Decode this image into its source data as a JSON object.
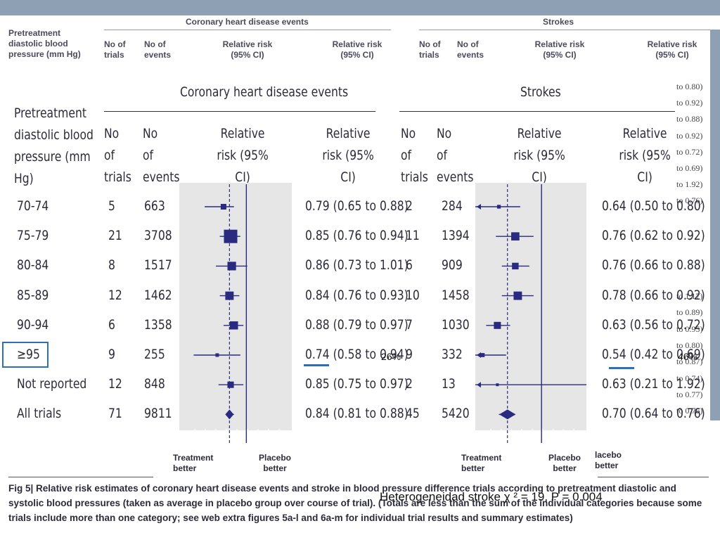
{
  "background_header": {
    "panel_titles": [
      "Coronary heart disease events",
      "Strokes"
    ],
    "row_label": "Pretreatment diastolic blood pressure (mm Hg)",
    "col_trials": "No of trials",
    "col_events": "No of events",
    "col_rr": "Relative risk (95% CI)"
  },
  "side_notes": [
    "to 0.80)",
    "to 0.92)",
    "to 0.88)",
    "to 0.92)",
    "to 0.72)",
    "to 0.69)",
    "to 1.92)",
    "to 0.76)",
    "to 1.17)",
    "to 0.89)",
    "to 0.95)",
    "to 0.80)",
    "to 0.87)",
    "to 0.74)",
    "to 0.77)",
    "to 0.76)"
  ],
  "side_fragment": "lacebo better",
  "header": {
    "chd_title": "Coronary heart disease events",
    "stroke_title": "Strokes",
    "row_label": "Pretreatment diastolic blood pressure (mm Hg)",
    "col_trials": "No of trials",
    "col_events": "No of events",
    "col_rr": "Relative risk (95% CI)"
  },
  "axis_labels": {
    "treatment_better": "Treatment better",
    "placebo_better": "Placebo better"
  },
  "annotations": {
    "chd_pct": "26%",
    "stroke_pct": "46%",
    "heterogeneity": "Heterogeneidad stroke χ ² = 19, P = 0.004"
  },
  "caption": {
    "fig": "Fig 5|",
    "text": "Relative risk estimates of coronary heart disease events and stroke in blood pressure difference trials according to pretreatment diastolic and systolic blood pressures (taken as average in placebo group over course of trial). (Totals are less than the sum of the individual categories because some trials include more than one category; see web extra figures 5a-l and 6a-m for individual trial results and summary estimates)"
  },
  "chart_data": [
    {
      "type": "forest",
      "title": "Coronary heart disease events",
      "categories": [
        "70-74",
        "75-79",
        "80-84",
        "85-89",
        "90-94",
        "≥95",
        "Not reported",
        "All trials"
      ],
      "trials": [
        5,
        21,
        8,
        12,
        6,
        9,
        12,
        71
      ],
      "events": [
        663,
        3708,
        1517,
        1462,
        1358,
        255,
        848,
        9811
      ],
      "rr": [
        0.79,
        0.85,
        0.86,
        0.84,
        0.88,
        0.74,
        0.85,
        0.84
      ],
      "ci_low": [
        0.65,
        0.76,
        0.73,
        0.76,
        0.79,
        0.58,
        0.75,
        0.81
      ],
      "ci_high": [
        0.88,
        0.94,
        1.01,
        0.93,
        0.97,
        0.94,
        0.97,
        0.88
      ],
      "rr_text": [
        "0.79 (0.65 to 0.88)",
        "0.85 (0.76 to 0.94)",
        "0.86 (0.73 to 1.01)",
        "0.84 (0.76 to 0.93)",
        "0.88 (0.79 to 0.97)",
        "0.74 (0.58 to 0.94)",
        "0.85 (0.75 to 0.97)",
        "0.84 (0.81 to 0.88)"
      ],
      "reference_line": 1.0,
      "pooled_line": 0.84,
      "xlim": [
        0.5,
        1.6
      ]
    },
    {
      "type": "forest",
      "title": "Strokes",
      "categories": [
        "70-74",
        "75-79",
        "80-84",
        "85-89",
        "90-94",
        "≥95",
        "Not reported",
        "All trials"
      ],
      "trials": [
        2,
        11,
        6,
        10,
        7,
        9,
        2,
        45
      ],
      "events": [
        284,
        1394,
        909,
        1458,
        1030,
        332,
        13,
        5420
      ],
      "rr": [
        0.64,
        0.76,
        0.76,
        0.78,
        0.63,
        0.54,
        0.63,
        0.7
      ],
      "ci_low": [
        0.5,
        0.62,
        0.66,
        0.66,
        0.56,
        0.42,
        0.21,
        0.64
      ],
      "ci_high": [
        0.8,
        0.92,
        0.88,
        0.92,
        0.72,
        0.69,
        1.92,
        0.76
      ],
      "rr_text": [
        "0.64 (0.50 to 0.80)",
        "0.76 (0.62 to 0.92)",
        "0.76 (0.66 to 0.88)",
        "0.78 (0.66 to 0.92)",
        "0.63 (0.56 to 0.72)",
        "0.54 (0.42 to 0.69)",
        "0.63 (0.21 to 1.92)",
        "0.70 (0.64 to 0.76)"
      ],
      "reference_line": 1.0,
      "pooled_line": 0.7,
      "xlim": [
        0.5,
        1.6
      ]
    }
  ],
  "colors": {
    "marker": "#2a2a80",
    "panel_bg": "#e6e6e6",
    "highlight": "#2f6fb5",
    "topbar": "#8ea0b3"
  }
}
